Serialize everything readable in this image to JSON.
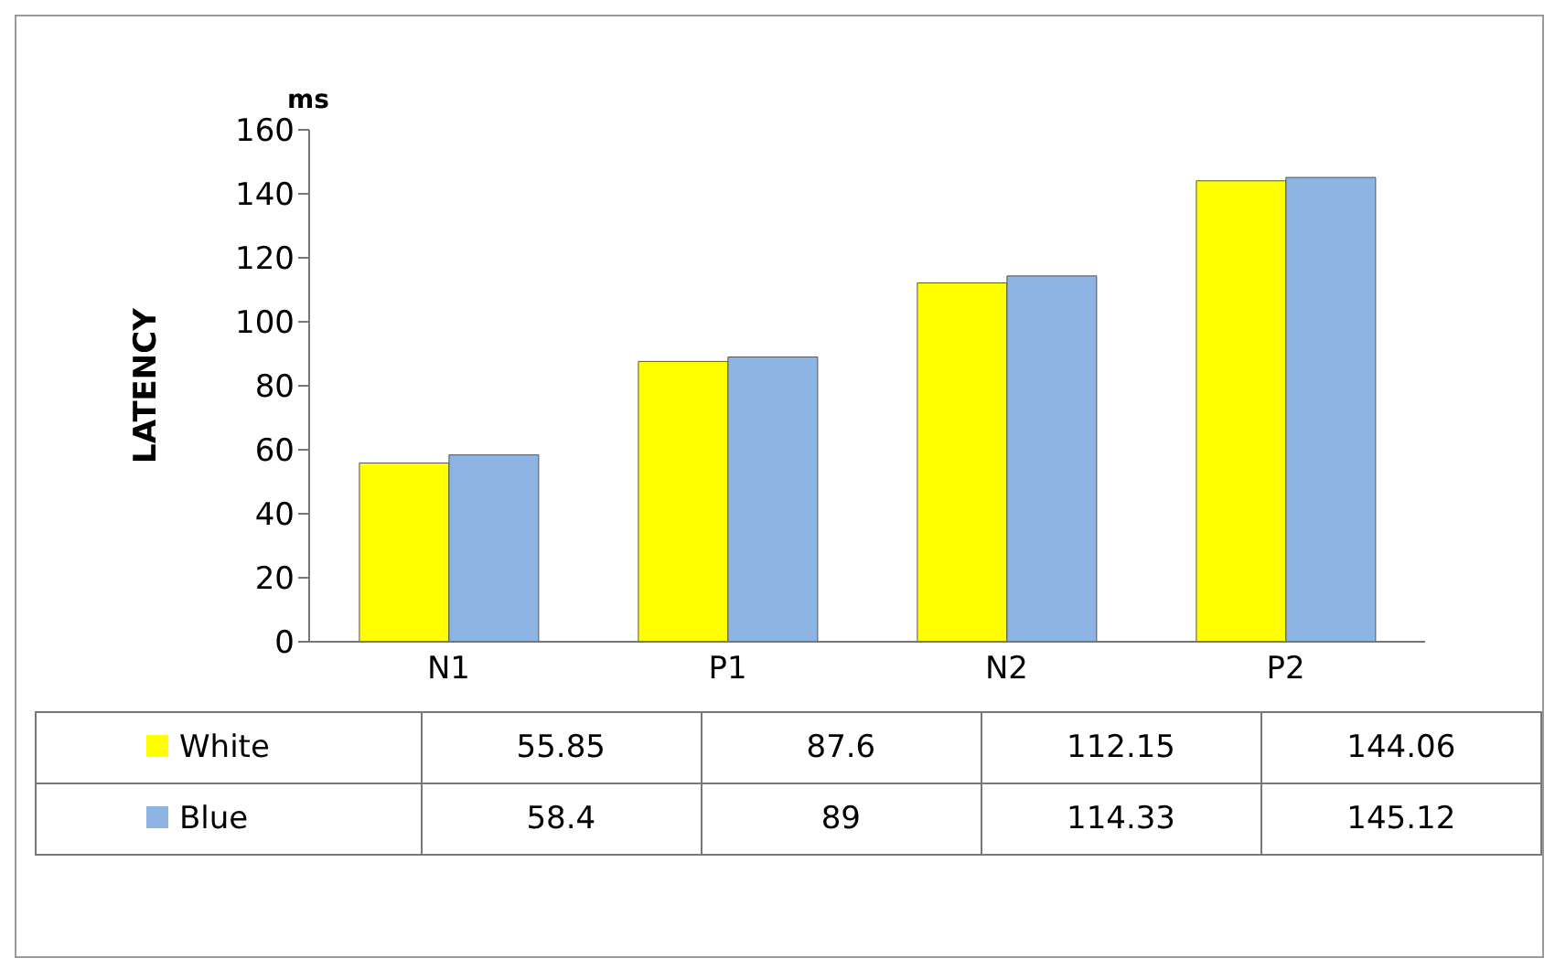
{
  "chart_data": {
    "type": "bar",
    "ylabel": "LATENCY",
    "annotations": [
      "ms"
    ],
    "categories": [
      "N1",
      "P1",
      "N2",
      "P2"
    ],
    "series": [
      {
        "name": "White",
        "color": "#ffff00",
        "values": [
          55.85,
          87.6,
          112.15,
          144.06
        ]
      },
      {
        "name": "Blue",
        "color": "#8db4e2",
        "values": [
          58.4,
          89,
          114.33,
          145.12
        ]
      }
    ],
    "ylim": [
      0,
      160
    ],
    "yticks": [
      0,
      20,
      40,
      60,
      80,
      100,
      120,
      140,
      160
    ],
    "data_labels": true,
    "legend": "bottom left"
  }
}
